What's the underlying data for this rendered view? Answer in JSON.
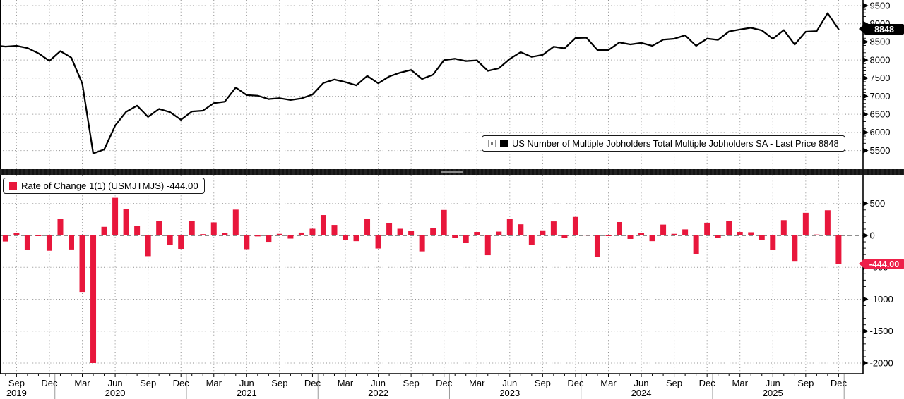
{
  "colors": {
    "bar_red": "#e8173c",
    "flag_red": "#ee2049",
    "line_black": "#000000",
    "flag_black": "#000000",
    "grid_gray": "#8f8f8f"
  },
  "panels": {
    "top": {
      "legend_label": "US Number of Multiple Jobholders Total Multiple Jobholders SA - Last Price 8848",
      "last_price_flag": "8848",
      "y_axis_labels": [
        "9500",
        "9000",
        "8500",
        "8000",
        "7500",
        "7000",
        "6500",
        "6000",
        "5500"
      ]
    },
    "bottom": {
      "legend_label": "Rate of Change 1(1) (USMJTMJS) -444.00",
      "last_value_flag": "-444.00",
      "y_axis_labels": [
        "500",
        "0",
        "-500",
        "-1000",
        "-1500",
        "-2000"
      ]
    }
  },
  "x_axis": {
    "month_labels": [
      "Sep",
      "Dec",
      "Mar",
      "Jun",
      "Sep",
      "Dec",
      "Mar",
      "Jun",
      "Sep",
      "Dec",
      "Mar",
      "Jun",
      "Sep",
      "Dec",
      "Mar",
      "Jun",
      "Sep",
      "Dec",
      "Mar",
      "Jun",
      "Sep",
      "Dec",
      "Mar",
      "Jun",
      "Sep",
      "Dec"
    ],
    "year_labels": [
      {
        "label": "2019",
        "tick": 0
      },
      {
        "label": "2020",
        "tick": 3
      },
      {
        "label": "2021",
        "tick": 7
      },
      {
        "label": "2022",
        "tick": 11
      },
      {
        "label": "2023",
        "tick": 15
      },
      {
        "label": "2024",
        "tick": 19
      },
      {
        "label": "2025",
        "tick": 23
      }
    ]
  },
  "chart_data": [
    {
      "type": "line",
      "name": "US Number of Multiple Jobholders Total Multiple Jobholders SA",
      "last_price": 8848,
      "ylim": [
        5500,
        9500
      ],
      "grid": true,
      "legend_position": "bottom-right-of-panel",
      "x": [
        "2019-07",
        "2019-08",
        "2019-09",
        "2019-10",
        "2019-11",
        "2019-12",
        "2020-01",
        "2020-02",
        "2020-03",
        "2020-04",
        "2020-05",
        "2020-06",
        "2020-07",
        "2020-08",
        "2020-09",
        "2020-10",
        "2020-11",
        "2020-12",
        "2021-01",
        "2021-02",
        "2021-03",
        "2021-04",
        "2021-05",
        "2021-06",
        "2021-07",
        "2021-08",
        "2021-09",
        "2021-10",
        "2021-11",
        "2021-12",
        "2022-01",
        "2022-02",
        "2022-03",
        "2022-04",
        "2022-05",
        "2022-06",
        "2022-07",
        "2022-08",
        "2022-09",
        "2022-10",
        "2022-11",
        "2022-12",
        "2023-01",
        "2023-02",
        "2023-03",
        "2023-04",
        "2023-05",
        "2023-06",
        "2023-07",
        "2023-08",
        "2023-09",
        "2023-10",
        "2023-11",
        "2023-12",
        "2024-01",
        "2024-02",
        "2024-03",
        "2024-04",
        "2024-05",
        "2024-06",
        "2024-07",
        "2024-08",
        "2024-09",
        "2024-10",
        "2024-11",
        "2024-12",
        "2025-01",
        "2025-02",
        "2025-03",
        "2025-04",
        "2025-05",
        "2025-06",
        "2025-07",
        "2025-08",
        "2025-09",
        "2025-10",
        "2025-11",
        "2025-12"
      ],
      "values": [
        8385,
        8370,
        8390,
        8330,
        8185,
        7975,
        8245,
        8065,
        7350,
        5420,
        5530,
        6190,
        6570,
        6740,
        6430,
        6650,
        6560,
        6350,
        6580,
        6600,
        6810,
        6850,
        7240,
        7030,
        7015,
        6920,
        6945,
        6895,
        6940,
        7045,
        7365,
        7460,
        7390,
        7300,
        7560,
        7355,
        7545,
        7650,
        7725,
        7475,
        7595,
        7995,
        8035,
        7970,
        7990,
        7700,
        7770,
        8030,
        8215,
        8085,
        8140,
        8365,
        8320,
        8605,
        8615,
        8275,
        8275,
        8485,
        8430,
        8470,
        8390,
        8560,
        8585,
        8680,
        8390,
        8590,
        8555,
        8785,
        8840,
        8890,
        8815,
        8585,
        8825,
        8425,
        8780,
        8795,
        9292,
        8848
      ]
    },
    {
      "type": "bar",
      "name": "Rate of Change 1(1) (USMJTMJS)",
      "last_value": -444.0,
      "ylim": [
        -2050,
        560
      ],
      "grid": true,
      "legend_position": "top-left-of-panel",
      "x_start": "2019-08",
      "x_end": "2025-12",
      "x_step": "1 month",
      "values": [
        -95,
        35,
        -230,
        -10,
        -240,
        265,
        -220,
        -885,
        -2000,
        135,
        590,
        415,
        150,
        -325,
        225,
        -150,
        -210,
        225,
        20,
        205,
        40,
        405,
        -215,
        -15,
        -100,
        25,
        -50,
        45,
        105,
        320,
        165,
        -70,
        -90,
        260,
        -205,
        190,
        105,
        75,
        -250,
        120,
        400,
        -40,
        -120,
        55,
        -310,
        60,
        255,
        175,
        -150,
        80,
        220,
        -40,
        290,
        10,
        -340,
        0,
        210,
        -55,
        40,
        -90,
        170,
        25,
        95,
        -290,
        200,
        -35,
        230,
        55,
        50,
        -75,
        -230,
        240,
        -400,
        355,
        15,
        395,
        -444
      ]
    }
  ]
}
